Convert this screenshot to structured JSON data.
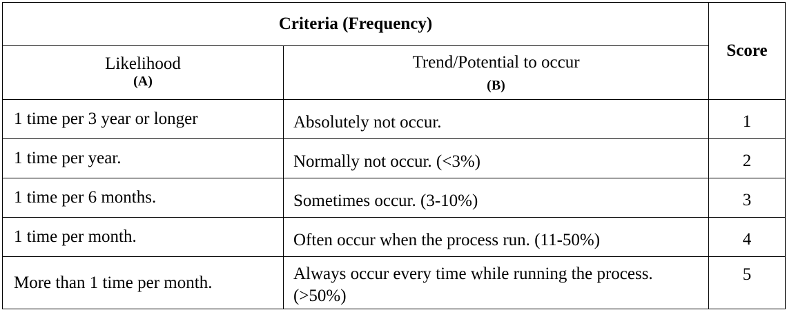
{
  "table": {
    "criteria_header": "Criteria (Frequency)",
    "score_header": "Score",
    "col_a": {
      "label": "Likelihood",
      "code": "(A)"
    },
    "col_b": {
      "label": "Trend/Potential to occur",
      "code": "(B)"
    },
    "rows": [
      {
        "likelihood": "1 time per 3 year or longer",
        "trend": "Absolutely not occur.",
        "score": "1"
      },
      {
        "likelihood": "1 time per year.",
        "trend": "Normally not occur. (<3%)",
        "score": "2"
      },
      {
        "likelihood": "1 time per 6 months.",
        "trend": "Sometimes occur. (3-10%)",
        "score": "3"
      },
      {
        "likelihood": "1 time per month.",
        "trend": "Often occur when the process run. (11-50%)",
        "score": "4"
      },
      {
        "likelihood": "More than 1 time per month.",
        "trend": "Always occur every time while running the process. (>50%)",
        "score": "5"
      }
    ]
  }
}
